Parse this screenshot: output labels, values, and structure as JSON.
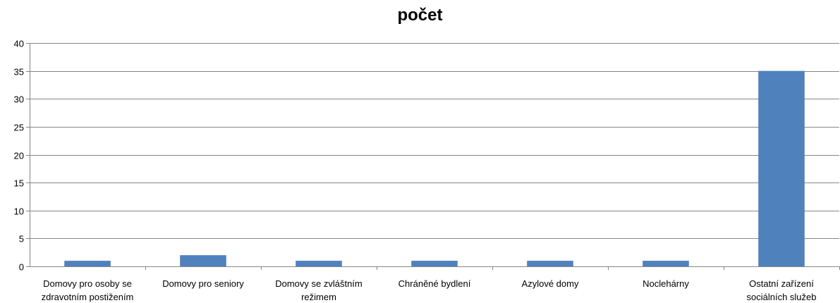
{
  "chart_data": {
    "type": "bar",
    "title": "počet",
    "categories": [
      [
        "Domovy pro osoby se",
        "zdravotním postižením"
      ],
      [
        "Domovy pro seniory"
      ],
      [
        "Domovy se zvláštním",
        "režimem"
      ],
      [
        "Chráněné bydlení"
      ],
      [
        "Azylové domy"
      ],
      [
        "Noclehárny"
      ],
      [
        "Ostatní zařízení",
        "sociálních služeb"
      ]
    ],
    "values": [
      1,
      2,
      1,
      1,
      1,
      1,
      35
    ],
    "ylim": [
      0,
      40
    ],
    "yticks": [
      0,
      5,
      10,
      15,
      20,
      25,
      30,
      35,
      40
    ],
    "grid": true,
    "legend": "none",
    "bar_color": "#4F81BD",
    "gridline_color": "#868686",
    "axis_color": "#868686"
  }
}
